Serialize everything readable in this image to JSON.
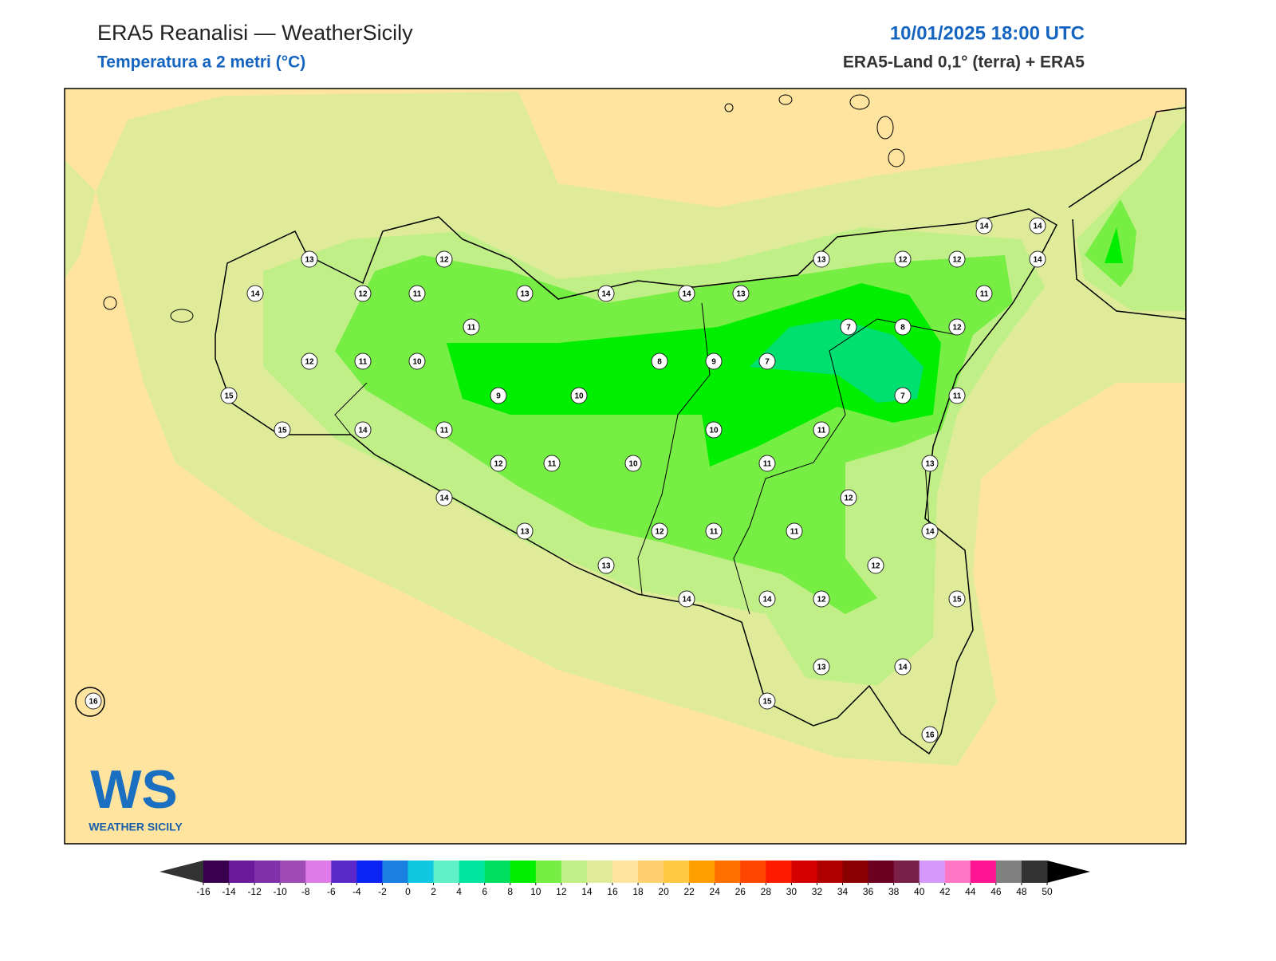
{
  "header": {
    "title": "ERA5 Reanalisi — WeatherSicily",
    "subtitle": "Temperatura a 2 metri (°C)",
    "datetime": "10/01/2025 18:00 UTC",
    "source": "ERA5-Land 0,1° (terra) + ERA5"
  },
  "logo": {
    "mark": "WS",
    "text": "WEATHER SICILY"
  },
  "stations": [
    13,
    12,
    14,
    12,
    11,
    13,
    14,
    14,
    13,
    13,
    12,
    12,
    14,
    14,
    14,
    11,
    11,
    7,
    8,
    12,
    12,
    11,
    10,
    8,
    9,
    7,
    9,
    10,
    7,
    11,
    15,
    15,
    14,
    11,
    10,
    11,
    12,
    11,
    10,
    11,
    13,
    14,
    12,
    13,
    12,
    11,
    11,
    14,
    13,
    12,
    14,
    14,
    12,
    15,
    13,
    14,
    15,
    16,
    16
  ],
  "colorbar": {
    "ticks": [
      -16,
      -14,
      -12,
      -10,
      -8,
      -6,
      -4,
      -2,
      0,
      2,
      4,
      6,
      8,
      10,
      12,
      14,
      16,
      18,
      20,
      22,
      24,
      26,
      28,
      30,
      32,
      34,
      36,
      38,
      40,
      42,
      44,
      46,
      48,
      50
    ],
    "colors": [
      "#3a0050",
      "#6a1a9a",
      "#8030a8",
      "#a04cb8",
      "#e07ae8",
      "#5a28c8",
      "#0a24f5",
      "#1a80e0",
      "#10c8e0",
      "#5ff0c8",
      "#00e5a0",
      "#00e060",
      "#00ee00",
      "#77ee44",
      "#c0ef88",
      "#e0eb9a",
      "#ffe4a0",
      "#ffd070",
      "#ffc840",
      "#ffa000",
      "#ff7000",
      "#ff4500",
      "#ff1a00",
      "#d40000",
      "#b00000",
      "#8b0000",
      "#6b0020",
      "#7a1f48",
      "#d69aff",
      "#ff78c8",
      "#ff1493",
      "#808080",
      "#333333"
    ],
    "under": "#333333",
    "over": "#000000"
  }
}
